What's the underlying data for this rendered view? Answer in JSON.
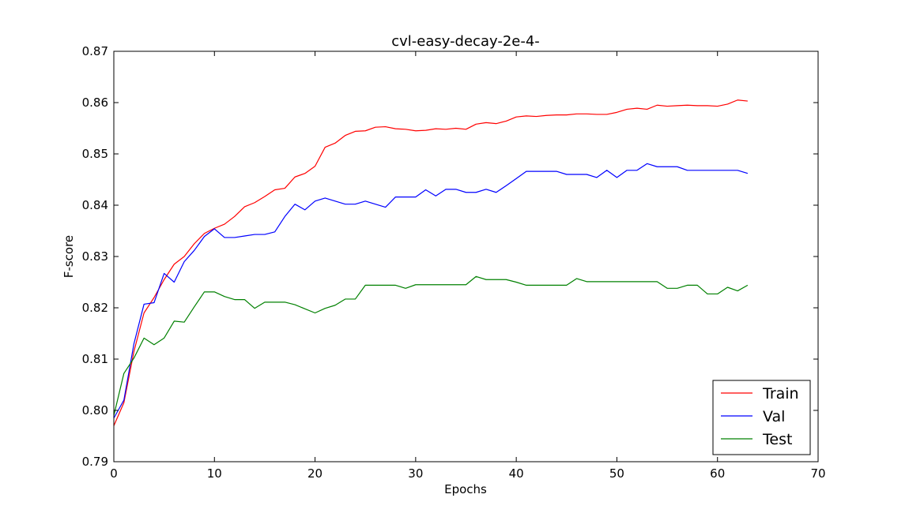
{
  "chart_data": {
    "type": "line",
    "title": "cvl-easy-decay-2e-4-",
    "xlabel": "Epochs",
    "ylabel": "F-score",
    "xlim": [
      0,
      70
    ],
    "ylim": [
      0.79,
      0.87
    ],
    "x_ticks": [
      0,
      10,
      20,
      30,
      40,
      50,
      60,
      70
    ],
    "x_tick_labels": [
      "0",
      "10",
      "20",
      "30",
      "40",
      "50",
      "60",
      "70"
    ],
    "y_ticks": [
      0.79,
      0.8,
      0.81,
      0.82,
      0.83,
      0.84,
      0.85,
      0.86,
      0.87
    ],
    "y_tick_labels": [
      "0.79",
      "0.80",
      "0.81",
      "0.82",
      "0.83",
      "0.84",
      "0.85",
      "0.86",
      "0.87"
    ],
    "grid": false,
    "legend_position": "bottom-right",
    "series": [
      {
        "name": "Train",
        "color": "#ff0000",
        "values": [
          0.797,
          0.8015,
          0.8115,
          0.819,
          0.822,
          0.8255,
          0.8285,
          0.83,
          0.8325,
          0.8345,
          0.8355,
          0.8363,
          0.8378,
          0.8397,
          0.8405,
          0.8417,
          0.843,
          0.8433,
          0.8455,
          0.8462,
          0.8476,
          0.8513,
          0.8521,
          0.8536,
          0.8544,
          0.8545,
          0.8552,
          0.8553,
          0.8549,
          0.8548,
          0.8545,
          0.8546,
          0.8549,
          0.8548,
          0.855,
          0.8548,
          0.8558,
          0.8561,
          0.8559,
          0.8564,
          0.8572,
          0.8574,
          0.8573,
          0.8575,
          0.8576,
          0.8576,
          0.8578,
          0.8578,
          0.8577,
          0.8577,
          0.8581,
          0.8587,
          0.8589,
          0.8587,
          0.8595,
          0.8593,
          0.8594,
          0.8595,
          0.8594,
          0.8594,
          0.8593,
          0.8597,
          0.8605,
          0.8603
        ]
      },
      {
        "name": "Val",
        "color": "#0000ff",
        "values": [
          0.7985,
          0.802,
          0.813,
          0.8207,
          0.821,
          0.8267,
          0.825,
          0.829,
          0.8312,
          0.8339,
          0.8354,
          0.8337,
          0.8337,
          0.834,
          0.8343,
          0.8343,
          0.8348,
          0.8378,
          0.8402,
          0.8391,
          0.8408,
          0.8414,
          0.8408,
          0.8402,
          0.8402,
          0.8408,
          0.8402,
          0.8396,
          0.8416,
          0.8416,
          0.8416,
          0.843,
          0.8418,
          0.8431,
          0.8431,
          0.8425,
          0.8425,
          0.8431,
          0.8425,
          0.8438,
          0.8452,
          0.8466,
          0.8466,
          0.8466,
          0.8466,
          0.846,
          0.846,
          0.846,
          0.8454,
          0.8468,
          0.8454,
          0.8468,
          0.8468,
          0.8481,
          0.8475,
          0.8475,
          0.8475,
          0.8468,
          0.8468,
          0.8468,
          0.8468,
          0.8468,
          0.8468,
          0.8462
        ]
      },
      {
        "name": "Test",
        "color": "#008000",
        "values": [
          0.799,
          0.8072,
          0.8102,
          0.8141,
          0.8128,
          0.8141,
          0.8174,
          0.8172,
          0.8202,
          0.8231,
          0.8231,
          0.8222,
          0.8216,
          0.8216,
          0.8199,
          0.8211,
          0.8211,
          0.8211,
          0.8206,
          0.8198,
          0.819,
          0.8199,
          0.8205,
          0.8217,
          0.8217,
          0.8244,
          0.8244,
          0.8244,
          0.8244,
          0.8238,
          0.8245,
          0.8245,
          0.8245,
          0.8245,
          0.8245,
          0.8245,
          0.8261,
          0.8255,
          0.8255,
          0.8255,
          0.825,
          0.8244,
          0.8244,
          0.8244,
          0.8244,
          0.8244,
          0.8257,
          0.8251,
          0.8251,
          0.8251,
          0.8251,
          0.8251,
          0.8251,
          0.8251,
          0.8251,
          0.8238,
          0.8238,
          0.8244,
          0.8244,
          0.8227,
          0.8227,
          0.824,
          0.8233,
          0.8244
        ]
      }
    ]
  }
}
